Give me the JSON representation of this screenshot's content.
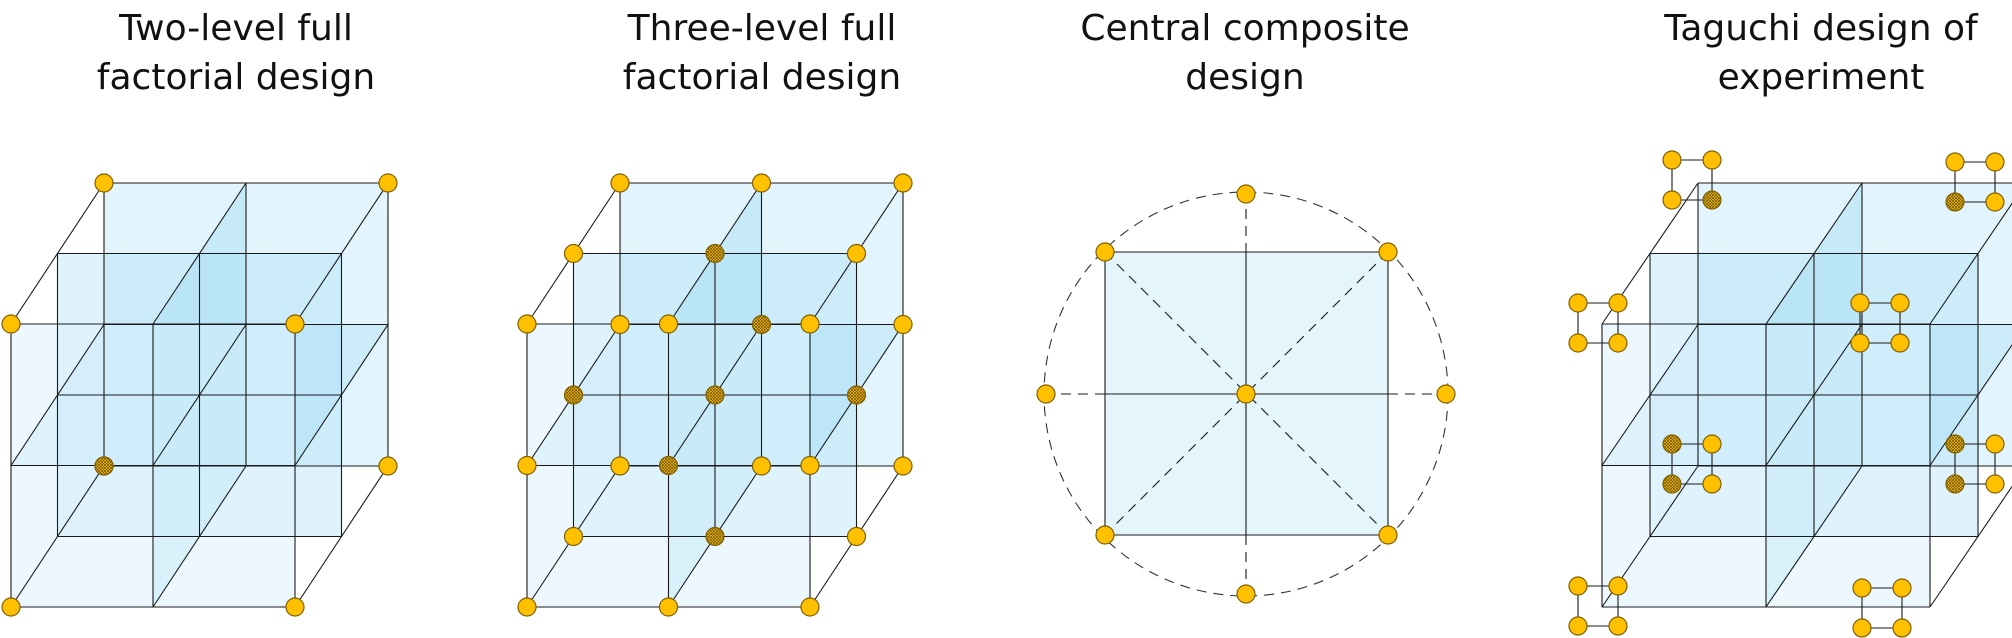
{
  "titles": [
    "Two-level full\nfactorial design",
    "Three-level full\nfactorial design",
    "Central composite\ndesign",
    "Taguchi design of\nexperiment"
  ],
  "colors": {
    "point": "#FFC000",
    "point_stroke": "#7F6000",
    "face": "#DCF2FB",
    "face_dark": "#A3DDF5",
    "line": "#1a1a1a"
  }
}
